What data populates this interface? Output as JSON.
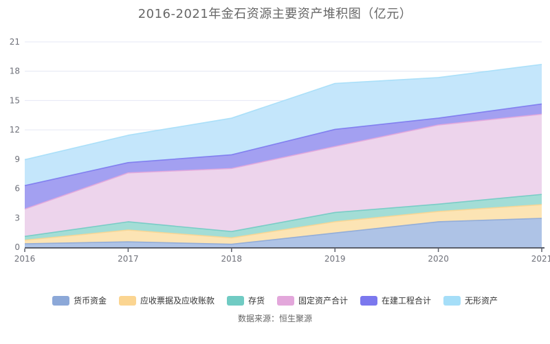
{
  "title": "2016-2021年金石资源主要资产堆积图（亿元）",
  "source": "数据来源：恒生聚源",
  "chart_data": {
    "type": "area",
    "stacked": true,
    "title": "2016-2021年金石资源主要资产堆积图（亿元）",
    "categories": [
      "2016",
      "2017",
      "2018",
      "2019",
      "2020",
      "2021"
    ],
    "series": [
      {
        "name": "货币资金",
        "color": "#8CA8D8",
        "fill": "#AEC3E6",
        "values": [
          0.35,
          0.55,
          0.3,
          1.45,
          2.6,
          2.95
        ]
      },
      {
        "name": "应收票据及应收账款",
        "color": "#FBD591",
        "fill": "#FCE4B4",
        "values": [
          0.37,
          1.2,
          0.65,
          1.15,
          1.05,
          1.4
        ]
      },
      {
        "name": "存货",
        "color": "#70CBC3",
        "fill": "#A3DDD6",
        "values": [
          0.38,
          0.85,
          0.65,
          0.95,
          0.75,
          1.05
        ]
      },
      {
        "name": "固定资产合计",
        "color": "#E3A7DB",
        "fill": "#EDD4EC",
        "values": [
          2.8,
          5.0,
          6.45,
          6.75,
          8.1,
          8.2
        ]
      },
      {
        "name": "在建工程合计",
        "color": "#7B78EE",
        "fill": "#A3A0F1",
        "values": [
          2.4,
          1.05,
          1.4,
          1.75,
          0.7,
          1.05
        ]
      },
      {
        "name": "无形资产",
        "color": "#A5DEF8",
        "fill": "#C4E6FB",
        "values": [
          2.65,
          2.8,
          3.75,
          4.7,
          4.15,
          4.05
        ]
      }
    ],
    "xlabel": "",
    "ylabel": "",
    "y_ticks": [
      0,
      3,
      6,
      9,
      12,
      15,
      18,
      21
    ],
    "ylim": [
      0,
      21
    ],
    "grid": true,
    "legend_position": "bottom"
  },
  "colors": {
    "axis_line": "#5B5F6B",
    "grid_line": "#E4E7F4",
    "tick_label": "#6E7079",
    "title_text": "#676767",
    "legend_text": "#333333",
    "source_text": "#666666",
    "background": "#FFFFFF"
  }
}
